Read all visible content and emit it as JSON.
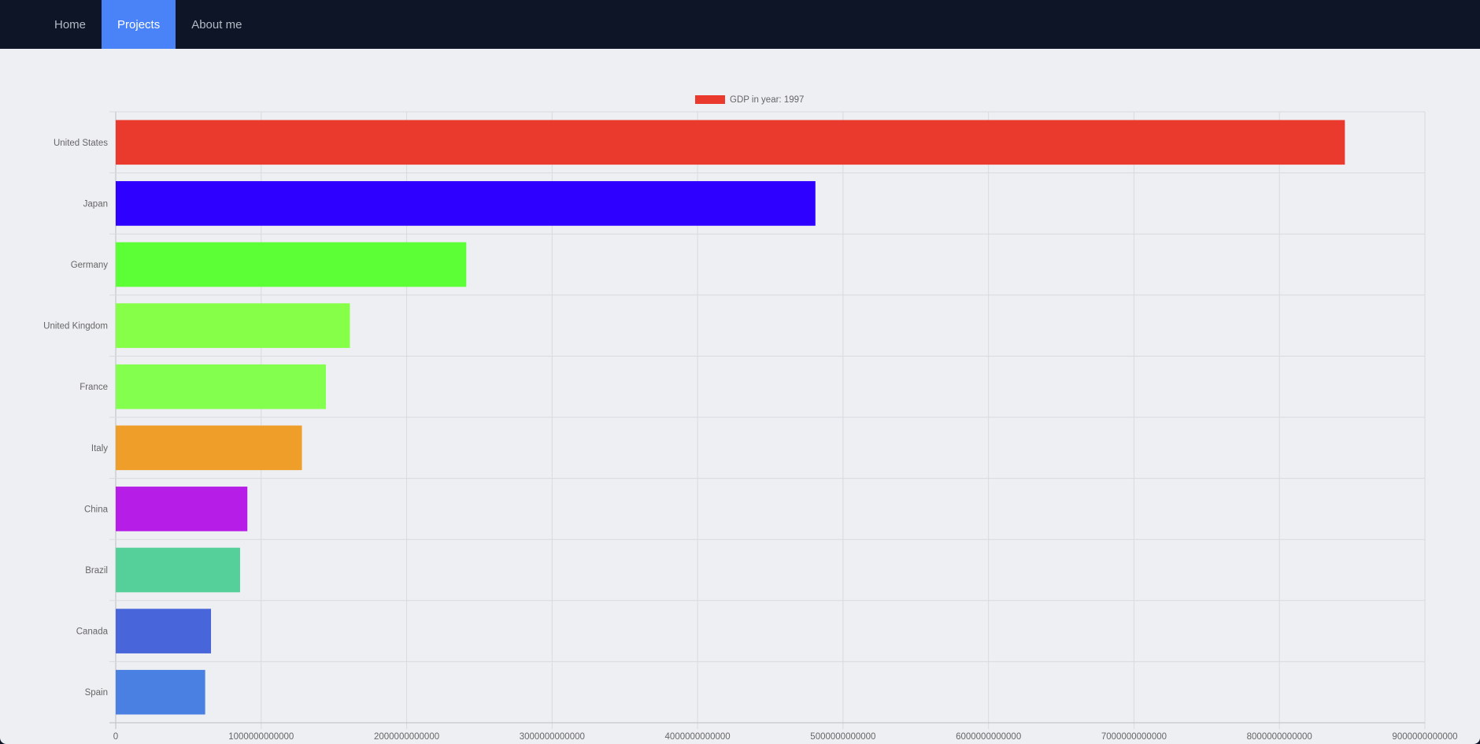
{
  "nav": {
    "items": [
      {
        "label": "Home",
        "active": false
      },
      {
        "label": "Projects",
        "active": true
      },
      {
        "label": "About me",
        "active": false
      }
    ]
  },
  "chart_data": {
    "type": "bar",
    "orientation": "horizontal",
    "title": "",
    "legend": {
      "label": "GDP in year: 1997",
      "color": "#ea3a2d",
      "position": "top-center"
    },
    "categories": [
      "United States",
      "Japan",
      "Germany",
      "United Kingdom",
      "France",
      "Italy",
      "China",
      "Brazil",
      "Canada",
      "Spain"
    ],
    "values": [
      8450000000000,
      4810000000000,
      2410000000000,
      1610000000000,
      1445000000000,
      1280000000000,
      905000000000,
      855000000000,
      655000000000,
      615000000000
    ],
    "colors": [
      "#ea3a2d",
      "#2d00ff",
      "#5cff36",
      "#86ff48",
      "#83ff4d",
      "#f09e2a",
      "#b61ee8",
      "#56d09b",
      "#4865da",
      "#4a80e2"
    ],
    "xlim": [
      0,
      9000000000000
    ],
    "xticks": [
      "0",
      "1000000000000",
      "2000000000000",
      "3000000000000",
      "4000000000000",
      "5000000000000",
      "6000000000000",
      "7000000000000",
      "8000000000000",
      "9000000000000"
    ],
    "xtick_values": [
      0,
      1000000000000,
      2000000000000,
      3000000000000,
      4000000000000,
      5000000000000,
      6000000000000,
      7000000000000,
      8000000000000,
      9000000000000
    ],
    "grid": true,
    "xlabel": "",
    "ylabel": ""
  }
}
